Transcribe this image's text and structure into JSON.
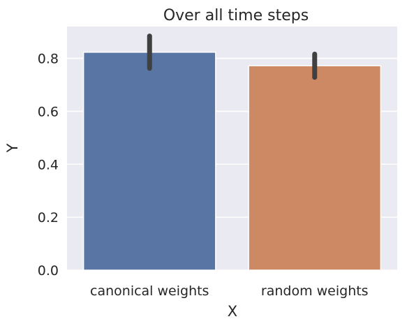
{
  "chart_data": {
    "type": "bar",
    "title": "Over all time steps",
    "xlabel": "X",
    "ylabel": "Y",
    "categories": [
      "canonical weights",
      "random weights"
    ],
    "values": [
      0.823,
      0.772
    ],
    "error_low": [
      0.762,
      0.728
    ],
    "error_high": [
      0.884,
      0.816
    ],
    "ylim": [
      0,
      0.92
    ],
    "yticks": [
      "0.0",
      "0.2",
      "0.4",
      "0.6",
      "0.8"
    ],
    "grid": true,
    "background": "#eaeaf2",
    "colors": [
      "#5975a4",
      "#cc8963"
    ],
    "error_color": "#404040"
  }
}
